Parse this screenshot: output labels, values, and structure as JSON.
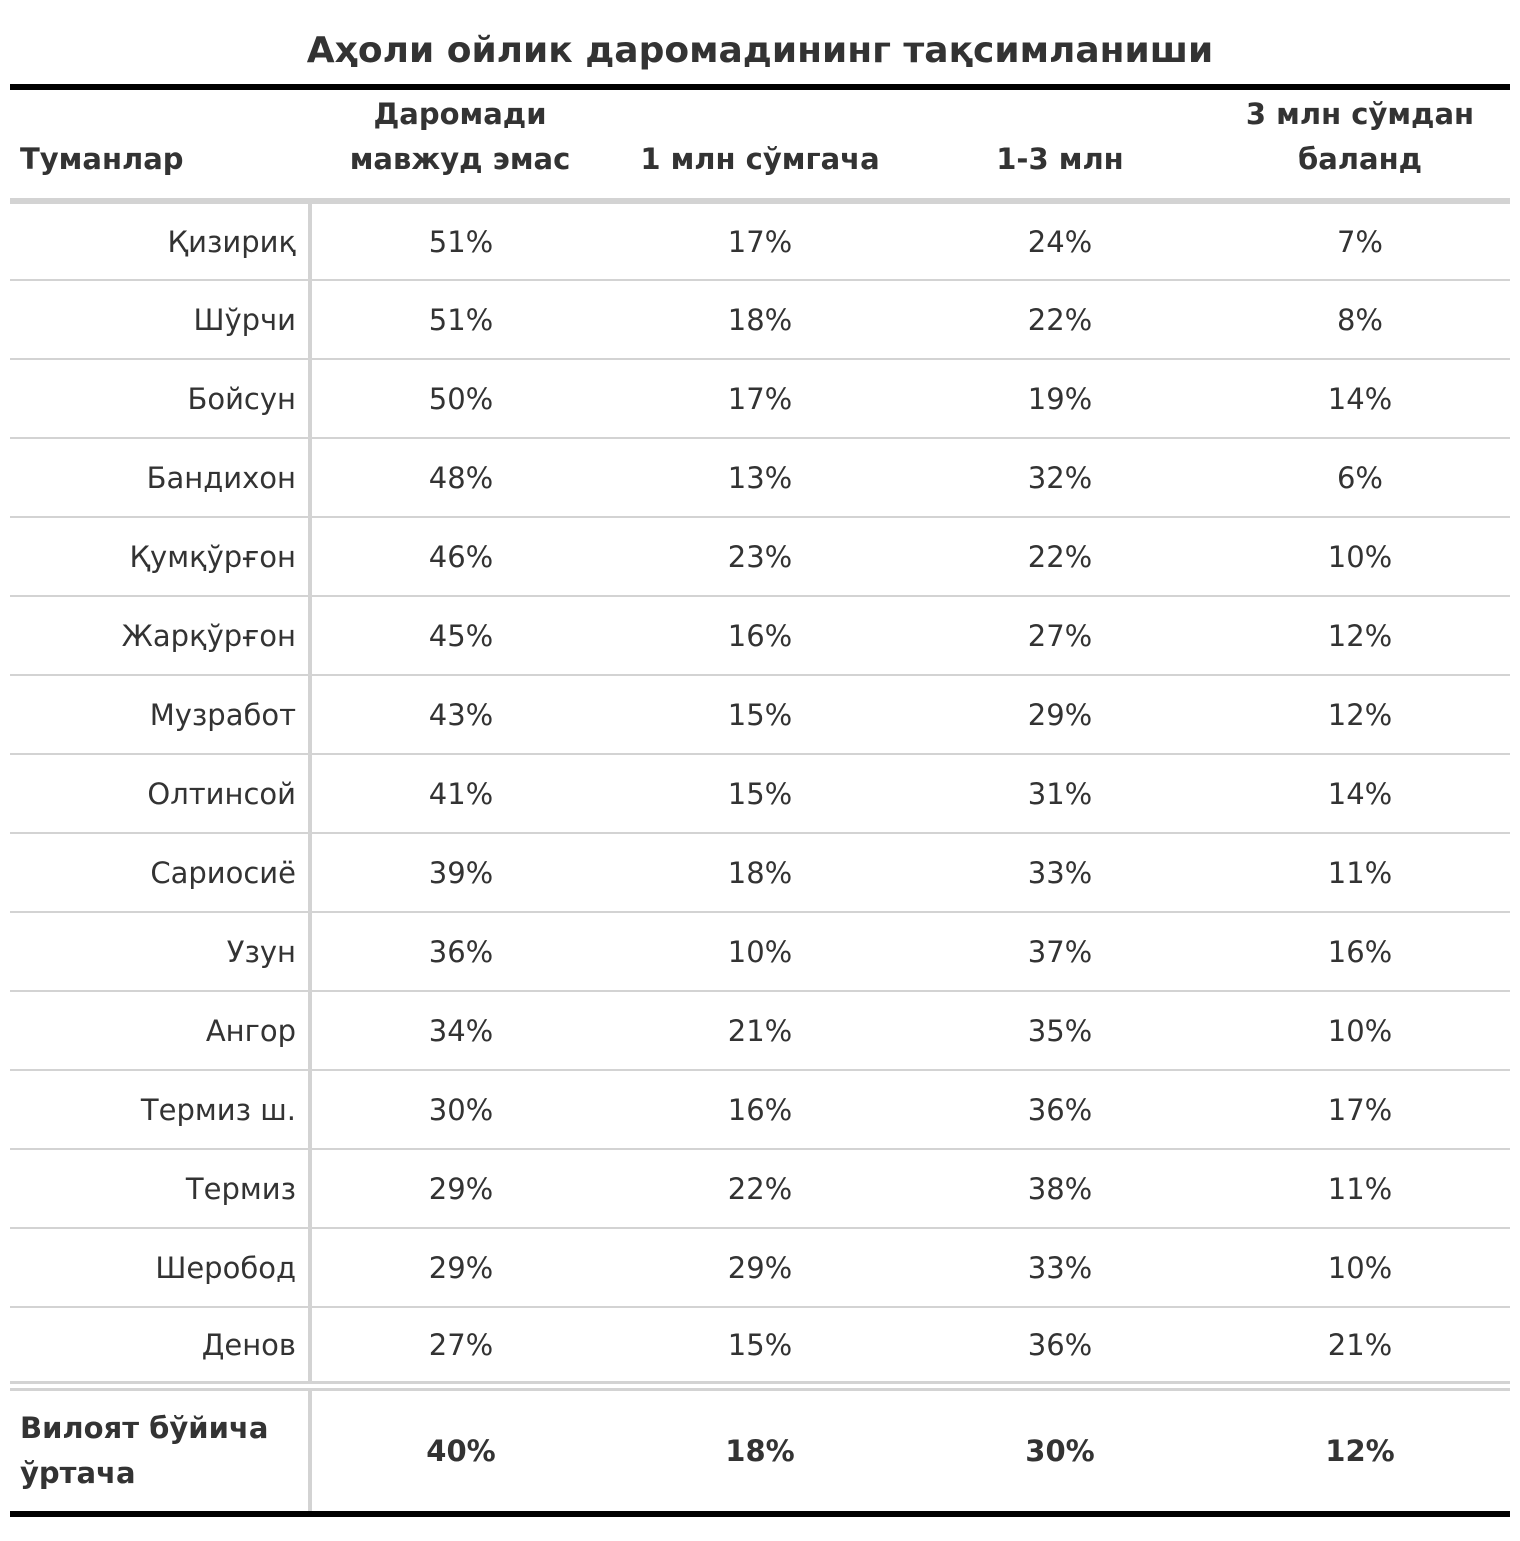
{
  "title": "Аҳоли ойлик даромадининг тақсимланиши",
  "header": {
    "stub": "Туманлар",
    "col1": "Даромади мавжуд эмас",
    "col2": "1 млн сўмгача",
    "col3": "1-3 млн",
    "col4": "3 млн сўмдан баланд"
  },
  "rows": [
    {
      "district": "Қизириқ",
      "none": "51%",
      "upto1": "17%",
      "one_three": "24%",
      "above3": "7%"
    },
    {
      "district": "Шўрчи",
      "none": "51%",
      "upto1": "18%",
      "one_three": "22%",
      "above3": "8%"
    },
    {
      "district": "Бойсун",
      "none": "50%",
      "upto1": "17%",
      "one_three": "19%",
      "above3": "14%"
    },
    {
      "district": "Бандихон",
      "none": "48%",
      "upto1": "13%",
      "one_three": "32%",
      "above3": "6%"
    },
    {
      "district": "Қумқўрғон",
      "none": "46%",
      "upto1": "23%",
      "one_three": "22%",
      "above3": "10%"
    },
    {
      "district": "Жарқўрғон",
      "none": "45%",
      "upto1": "16%",
      "one_three": "27%",
      "above3": "12%"
    },
    {
      "district": "Музработ",
      "none": "43%",
      "upto1": "15%",
      "one_three": "29%",
      "above3": "12%"
    },
    {
      "district": "Олтинсой",
      "none": "41%",
      "upto1": "15%",
      "one_three": "31%",
      "above3": "14%"
    },
    {
      "district": "Сариосиё",
      "none": "39%",
      "upto1": "18%",
      "one_three": "33%",
      "above3": "11%"
    },
    {
      "district": "Узун",
      "none": "36%",
      "upto1": "10%",
      "one_three": "37%",
      "above3": "16%"
    },
    {
      "district": "Ангор",
      "none": "34%",
      "upto1": "21%",
      "one_three": "35%",
      "above3": "10%"
    },
    {
      "district": "Термиз ш.",
      "none": "30%",
      "upto1": "16%",
      "one_three": "36%",
      "above3": "17%"
    },
    {
      "district": "Термиз",
      "none": "29%",
      "upto1": "22%",
      "one_three": "38%",
      "above3": "11%"
    },
    {
      "district": "Шеробод",
      "none": "29%",
      "upto1": "29%",
      "one_three": "33%",
      "above3": "10%"
    },
    {
      "district": "Денов",
      "none": "27%",
      "upto1": "15%",
      "one_three": "36%",
      "above3": "21%"
    }
  ],
  "summary": {
    "label": "Вилоят бўйича ўртача",
    "none": "40%",
    "upto1": "18%",
    "one_three": "30%",
    "above3": "12%"
  },
  "colors": {
    "text": "#333333",
    "rule_dark": "#000000",
    "rule_light": "#d3d3d3"
  }
}
